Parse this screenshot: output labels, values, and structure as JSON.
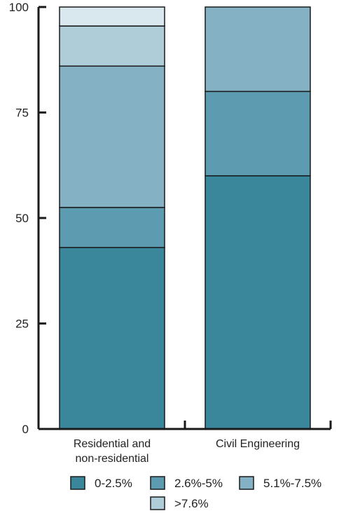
{
  "chart_data": {
    "type": "bar",
    "stacked": true,
    "categories": [
      [
        "Residential and",
        "non-residential"
      ],
      [
        "Civil Engineering"
      ]
    ],
    "series": [
      {
        "name": "0-2.5%",
        "color": "#3a879b",
        "values": [
          43,
          60
        ]
      },
      {
        "name": "2.6%-5%",
        "color": "#5d9cb0",
        "values": [
          9.5,
          20
        ]
      },
      {
        "name": "5.1%-7.5%",
        "color": "#84b2c4",
        "values": [
          33.5,
          20
        ]
      },
      {
        "name": ">7.6%",
        "color": "#afcdd9",
        "values": [
          9.5,
          0
        ]
      },
      {
        "name": "",
        "color": "#d8e8ee",
        "values": [
          4.5,
          0
        ]
      }
    ],
    "ylim": [
      0,
      100
    ],
    "yticks": [
      "0",
      "25",
      "50",
      "75",
      "100"
    ],
    "grid": false,
    "legend": {
      "position": "bottom"
    },
    "title": "",
    "xlabel": "",
    "ylabel": ""
  }
}
